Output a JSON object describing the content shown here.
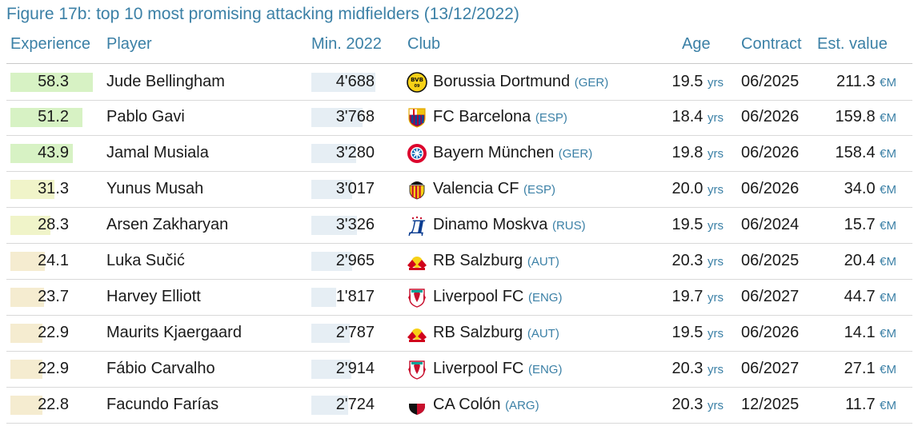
{
  "title": "Figure 17b: top 10 most promising attacking midfielders (13/12/2022)",
  "headers": {
    "experience": "Experience",
    "player": "Player",
    "minutes": "Min. 2022",
    "club": "Club",
    "age": "Age",
    "contract": "Contract",
    "value": "Est. value"
  },
  "units": {
    "age": "yrs",
    "value": "€M"
  },
  "colors": {
    "accent": "#3b80a6",
    "exp_high": "#d7f2c4",
    "exp_mid": "#f0f4c9",
    "exp_low": "#f5ecd0",
    "minutes_bar": "#e6eef4"
  },
  "rows": [
    {
      "experience": "58.3",
      "exp_value": 58.3,
      "player": "Jude Bellingham",
      "minutes": "4'688",
      "minutes_value": 4688,
      "club": "Borussia Dortmund",
      "country": "(GER)",
      "logo": "bvb-logo",
      "age": "19.5",
      "contract": "06/2025",
      "value": "211.3"
    },
    {
      "experience": "51.2",
      "exp_value": 51.2,
      "player": "Pablo Gavi",
      "minutes": "3'768",
      "minutes_value": 3768,
      "club": "FC Barcelona",
      "country": "(ESP)",
      "logo": "barcelona-logo",
      "age": "18.4",
      "contract": "06/2026",
      "value": "159.8"
    },
    {
      "experience": "43.9",
      "exp_value": 43.9,
      "player": "Jamal Musiala",
      "minutes": "3'280",
      "minutes_value": 3280,
      "club": "Bayern München",
      "country": "(GER)",
      "logo": "bayern-logo",
      "age": "19.8",
      "contract": "06/2026",
      "value": "158.4"
    },
    {
      "experience": "31.3",
      "exp_value": 31.3,
      "player": "Yunus Musah",
      "minutes": "3'017",
      "minutes_value": 3017,
      "club": "Valencia CF",
      "country": "(ESP)",
      "logo": "valencia-logo",
      "age": "20.0",
      "contract": "06/2026",
      "value": "34.0"
    },
    {
      "experience": "28.3",
      "exp_value": 28.3,
      "player": "Arsen Zakharyan",
      "minutes": "3'326",
      "minutes_value": 3326,
      "club": "Dinamo Moskva",
      "country": "(RUS)",
      "logo": "dinamo-logo",
      "age": "19.5",
      "contract": "06/2024",
      "value": "15.7"
    },
    {
      "experience": "24.1",
      "exp_value": 24.1,
      "player": "Luka Sučić",
      "minutes": "2'965",
      "minutes_value": 2965,
      "club": "RB Salzburg",
      "country": "(AUT)",
      "logo": "salzburg-logo",
      "age": "20.3",
      "contract": "06/2025",
      "value": "20.4"
    },
    {
      "experience": "23.7",
      "exp_value": 23.7,
      "player": "Harvey Elliott",
      "minutes": "1'817",
      "minutes_value": 1817,
      "club": "Liverpool FC",
      "country": "(ENG)",
      "logo": "liverpool-logo",
      "age": "19.7",
      "contract": "06/2027",
      "value": "44.7"
    },
    {
      "experience": "22.9",
      "exp_value": 22.9,
      "player": "Maurits Kjaergaard",
      "minutes": "2'787",
      "minutes_value": 2787,
      "club": "RB Salzburg",
      "country": "(AUT)",
      "logo": "salzburg-logo",
      "age": "19.5",
      "contract": "06/2026",
      "value": "14.1"
    },
    {
      "experience": "22.9",
      "exp_value": 22.9,
      "player": "Fábio Carvalho",
      "minutes": "2'914",
      "minutes_value": 2914,
      "club": "Liverpool FC",
      "country": "(ENG)",
      "logo": "liverpool-logo",
      "age": "20.3",
      "contract": "06/2027",
      "value": "27.1"
    },
    {
      "experience": "22.8",
      "exp_value": 22.8,
      "player": "Facundo Farías",
      "minutes": "2'724",
      "minutes_value": 2724,
      "club": "CA Colón",
      "country": "(ARG)",
      "logo": "colon-logo",
      "age": "20.3",
      "contract": "12/2025",
      "value": "11.7"
    }
  ]
}
